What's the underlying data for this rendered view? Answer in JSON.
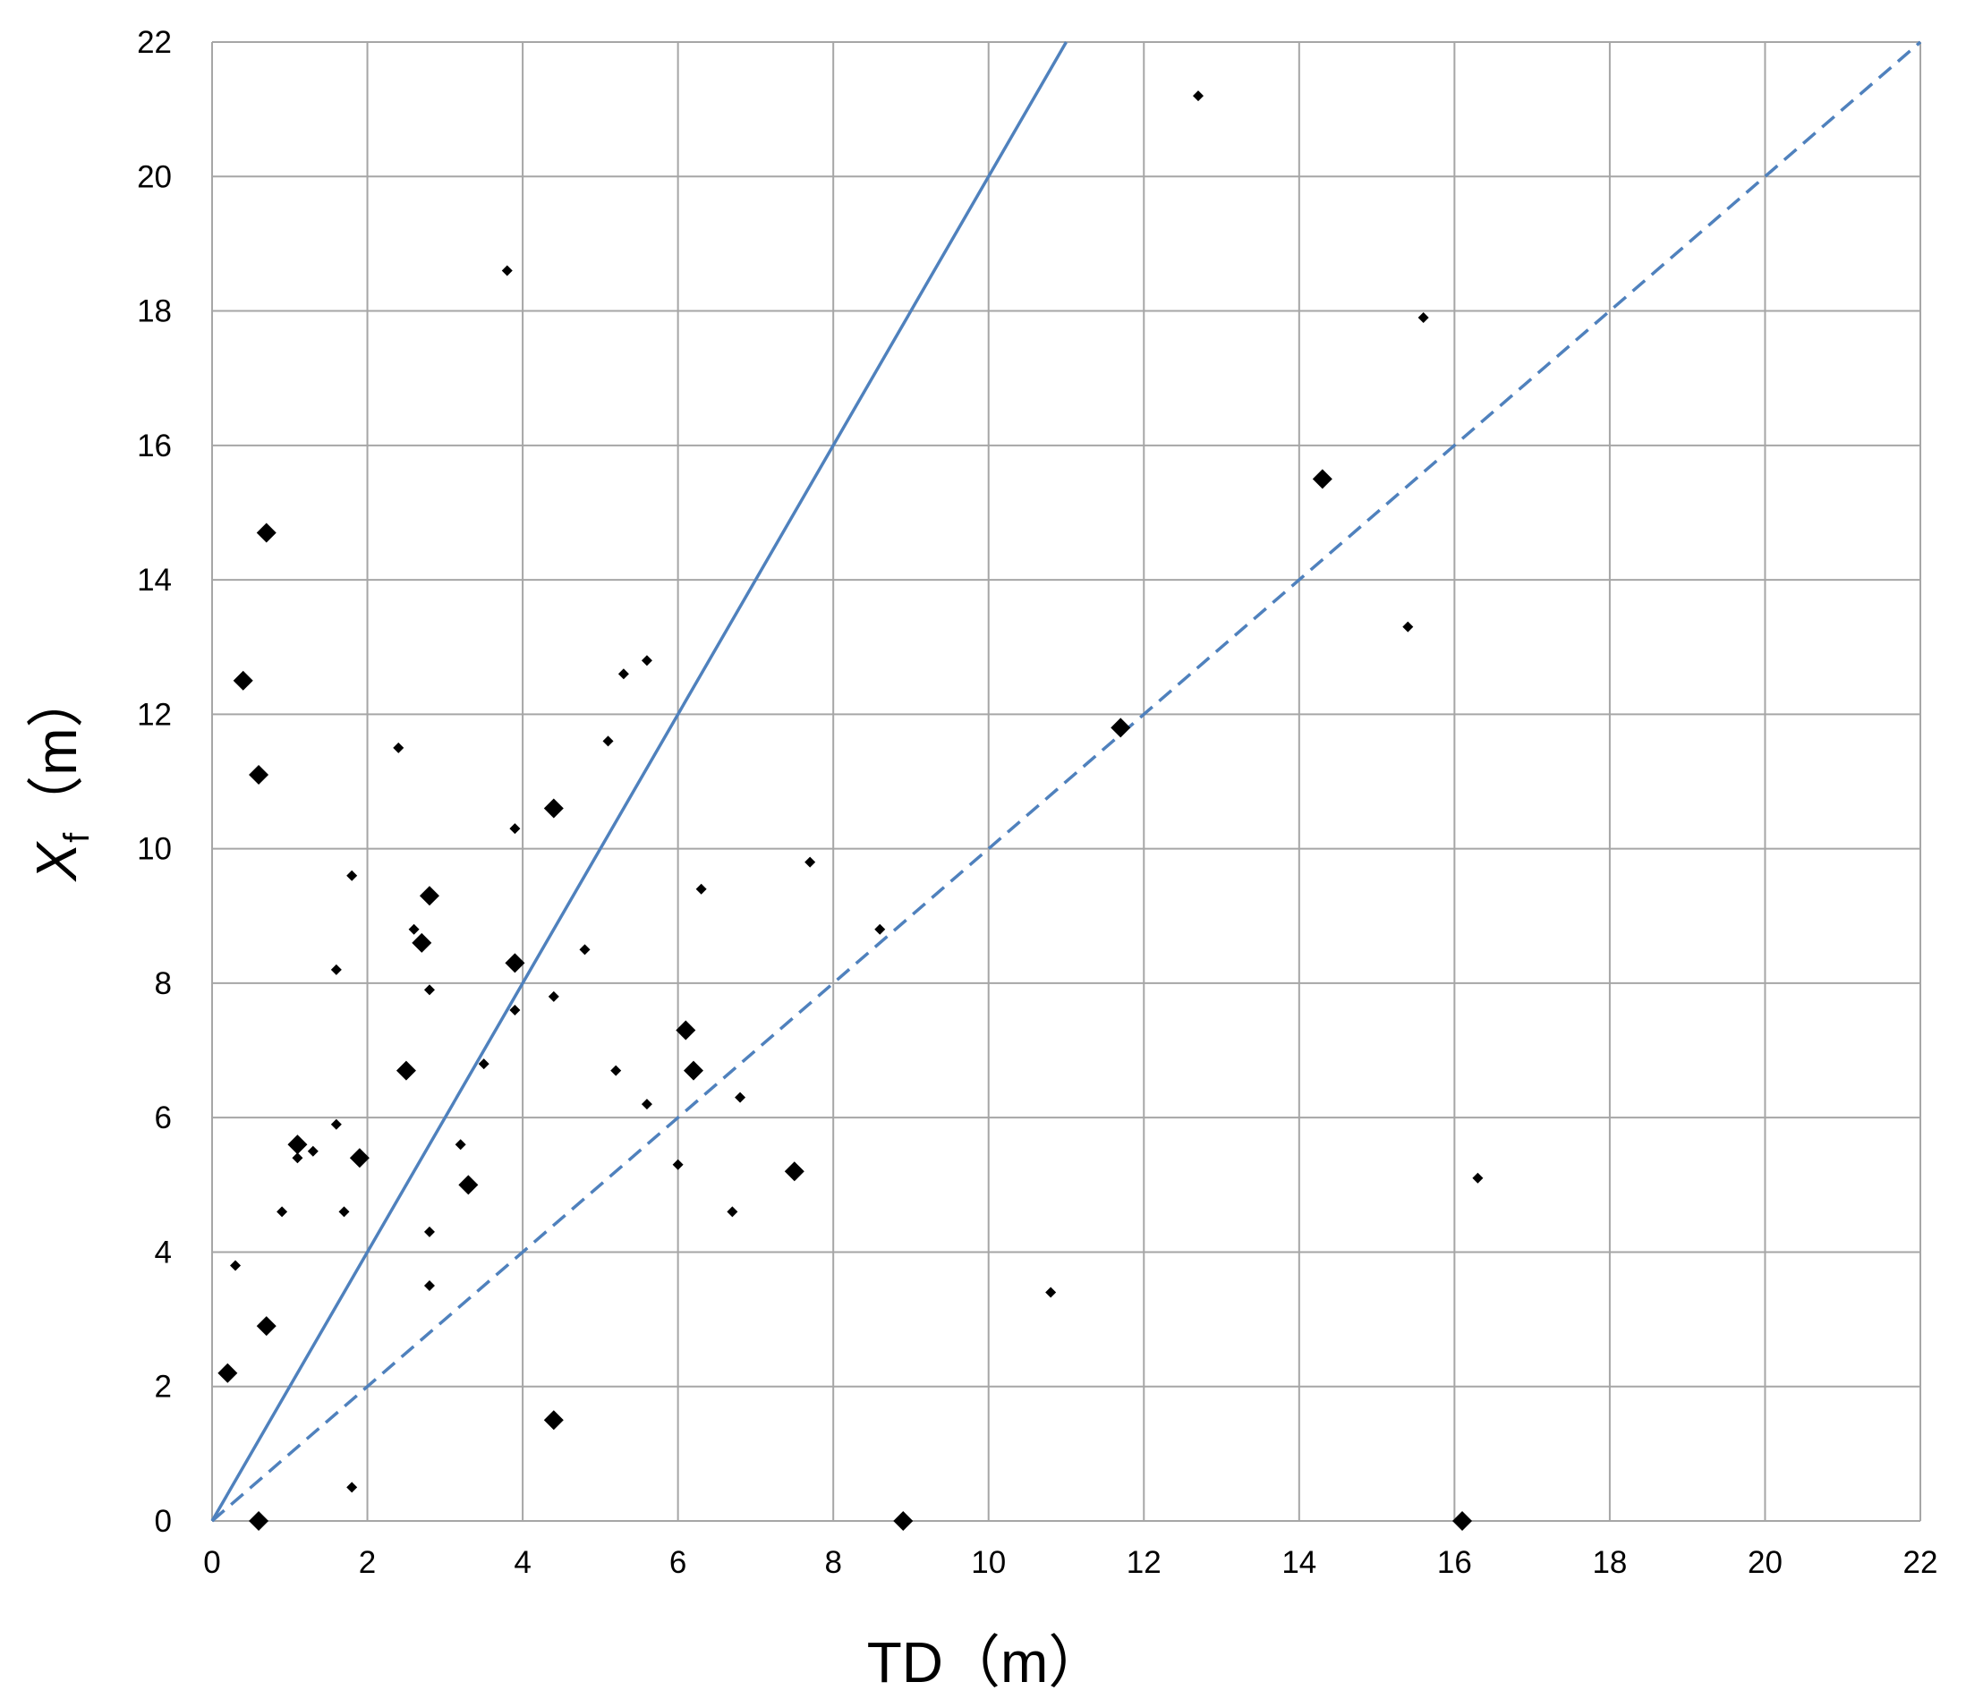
{
  "chart_data": {
    "type": "scatter",
    "title": "",
    "xlabel": "TD（m）",
    "ylabel_main": "X",
    "ylabel_sub": "f",
    "ylabel_unit": "（m）",
    "xlim": [
      0,
      22
    ],
    "ylim": [
      0,
      22
    ],
    "xticks": [
      0,
      2,
      4,
      6,
      8,
      10,
      12,
      14,
      16,
      18,
      20,
      22
    ],
    "yticks": [
      0,
      2,
      4,
      6,
      8,
      10,
      12,
      14,
      16,
      18,
      20,
      22
    ],
    "grid": true,
    "colors": {
      "points": "#000000",
      "lines": "#4F81BD",
      "grid": "#A6A6A6"
    },
    "reference_lines": [
      {
        "style": "solid",
        "slope": 2
      },
      {
        "style": "dashed",
        "slope": 1
      }
    ],
    "series": [
      {
        "marker": "large-diamond",
        "points": [
          [
            0.2,
            2.2
          ],
          [
            0.7,
            2.9
          ],
          [
            0.6,
            0.0
          ],
          [
            0.4,
            12.5
          ],
          [
            0.6,
            11.1
          ],
          [
            0.7,
            14.7
          ],
          [
            1.1,
            5.6
          ],
          [
            1.9,
            5.4
          ],
          [
            2.5,
            6.7
          ],
          [
            2.7,
            8.6
          ],
          [
            2.8,
            9.3
          ],
          [
            3.3,
            5.0
          ],
          [
            3.9,
            8.3
          ],
          [
            4.4,
            10.6
          ],
          [
            4.4,
            1.5
          ],
          [
            6.1,
            7.3
          ],
          [
            6.2,
            6.7
          ],
          [
            7.5,
            5.2
          ],
          [
            8.9,
            0.0
          ],
          [
            11.7,
            11.8
          ],
          [
            14.3,
            15.5
          ],
          [
            16.1,
            0.0
          ]
        ]
      },
      {
        "marker": "small-diamond",
        "points": [
          [
            0.3,
            3.8
          ],
          [
            0.9,
            4.6
          ],
          [
            1.1,
            5.4
          ],
          [
            1.3,
            5.5
          ],
          [
            1.6,
            5.9
          ],
          [
            1.6,
            8.2
          ],
          [
            1.7,
            4.6
          ],
          [
            1.8,
            9.6
          ],
          [
            1.8,
            0.5
          ],
          [
            2.4,
            11.5
          ],
          [
            2.6,
            8.8
          ],
          [
            2.8,
            7.9
          ],
          [
            2.8,
            4.3
          ],
          [
            2.8,
            3.5
          ],
          [
            3.2,
            5.6
          ],
          [
            3.5,
            6.8
          ],
          [
            3.8,
            18.6
          ],
          [
            3.9,
            10.3
          ],
          [
            3.9,
            7.6
          ],
          [
            4.4,
            7.8
          ],
          [
            4.8,
            8.5
          ],
          [
            5.1,
            11.6
          ],
          [
            5.2,
            6.7
          ],
          [
            5.3,
            12.6
          ],
          [
            5.6,
            12.8
          ],
          [
            5.6,
            6.2
          ],
          [
            6.0,
            5.3
          ],
          [
            6.3,
            9.4
          ],
          [
            6.7,
            4.6
          ],
          [
            6.8,
            6.3
          ],
          [
            7.7,
            9.8
          ],
          [
            8.6,
            8.8
          ],
          [
            10.8,
            3.4
          ],
          [
            12.7,
            21.2
          ],
          [
            15.4,
            13.3
          ],
          [
            15.6,
            17.9
          ],
          [
            16.3,
            5.1
          ]
        ]
      }
    ]
  }
}
